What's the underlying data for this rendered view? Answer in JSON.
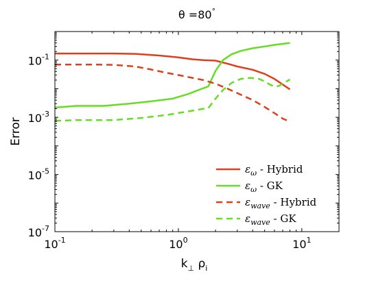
{
  "chart_data": {
    "type": "line",
    "title": {
      "base": "θ =80",
      "sup": "°"
    },
    "xlabel": {
      "k": "k",
      "k_sub": "⊥",
      "rho": " ρ",
      "rho_sub": "i"
    },
    "ylabel": "Error",
    "xscale": "log",
    "yscale": "log",
    "xlim": [
      0.1,
      20
    ],
    "ylim": [
      1e-07,
      1.0
    ],
    "x_ticks": [
      {
        "value": 0.1,
        "base": "10",
        "exp": "-1"
      },
      {
        "value": 1,
        "base": "10",
        "exp": "0"
      },
      {
        "value": 10,
        "base": "10",
        "exp": "1"
      }
    ],
    "y_ticks": [
      {
        "value": 1e-07,
        "base": "10",
        "exp": "-7"
      },
      {
        "value": 1e-05,
        "base": "10",
        "exp": "-5"
      },
      {
        "value": 0.001,
        "base": "10",
        "exp": "-3"
      },
      {
        "value": 0.1,
        "base": "10",
        "exp": "-1"
      }
    ],
    "legend_position": "bottom-right",
    "series": [
      {
        "name": "ε_ω - Hybrid",
        "legend": {
          "sym": "ε",
          "sub": "ω",
          "rest": " - Hybrid"
        },
        "color": "#e03d1a",
        "dash": "solid",
        "points": [
          [
            0.1,
            0.17
          ],
          [
            0.2,
            0.17
          ],
          [
            0.3,
            0.17
          ],
          [
            0.45,
            0.165
          ],
          [
            0.7,
            0.145
          ],
          [
            1.0,
            0.125
          ],
          [
            1.3,
            0.107
          ],
          [
            1.6,
            0.1
          ],
          [
            2.0,
            0.096
          ],
          [
            2.5,
            0.075
          ],
          [
            3.0,
            0.06
          ],
          [
            4.0,
            0.046
          ],
          [
            5.0,
            0.033
          ],
          [
            6.0,
            0.022
          ],
          [
            7.0,
            0.014
          ],
          [
            8.0,
            0.0095
          ]
        ]
      },
      {
        "name": "ε_ω - GK",
        "legend": {
          "sym": "ε",
          "sub": "ω",
          "rest": " - GK"
        },
        "color": "#66dd22",
        "dash": "solid",
        "points": [
          [
            0.1,
            0.0022
          ],
          [
            0.15,
            0.0025
          ],
          [
            0.25,
            0.0025
          ],
          [
            0.4,
            0.003
          ],
          [
            0.6,
            0.0036
          ],
          [
            0.9,
            0.0045
          ],
          [
            1.2,
            0.0065
          ],
          [
            1.5,
            0.0095
          ],
          [
            1.75,
            0.012
          ],
          [
            2.0,
            0.042
          ],
          [
            2.3,
            0.1
          ],
          [
            2.7,
            0.16
          ],
          [
            3.2,
            0.21
          ],
          [
            4.0,
            0.26
          ],
          [
            5.0,
            0.3
          ],
          [
            6.0,
            0.34
          ],
          [
            7.0,
            0.37
          ],
          [
            8.0,
            0.4
          ]
        ]
      },
      {
        "name": "ε_wave - Hybrid",
        "legend": {
          "sym": "ε",
          "sub": "wave",
          "rest": " - Hybrid"
        },
        "color": "#e03d1a",
        "dash": "dashed",
        "points": [
          [
            0.1,
            0.07
          ],
          [
            0.2,
            0.07
          ],
          [
            0.3,
            0.068
          ],
          [
            0.45,
            0.06
          ],
          [
            0.6,
            0.047
          ],
          [
            0.8,
            0.036
          ],
          [
            1.0,
            0.03
          ],
          [
            1.3,
            0.024
          ],
          [
            1.6,
            0.02
          ],
          [
            2.0,
            0.015
          ],
          [
            2.5,
            0.01
          ],
          [
            3.0,
            0.007
          ],
          [
            4.0,
            0.004
          ],
          [
            5.0,
            0.0023
          ],
          [
            6.0,
            0.0014
          ],
          [
            7.0,
            0.0009
          ],
          [
            8.0,
            0.0007
          ]
        ]
      },
      {
        "name": "ε_wave - GK",
        "legend": {
          "sym": "ε",
          "sub": "wave",
          "rest": " - GK"
        },
        "color": "#66dd22",
        "dash": "dashed",
        "points": [
          [
            0.1,
            0.00075
          ],
          [
            0.15,
            0.0008
          ],
          [
            0.3,
            0.0008
          ],
          [
            0.5,
            0.00095
          ],
          [
            0.8,
            0.0012
          ],
          [
            1.2,
            0.0016
          ],
          [
            1.6,
            0.002
          ],
          [
            1.75,
            0.0021
          ],
          [
            2.0,
            0.0045
          ],
          [
            2.3,
            0.009
          ],
          [
            2.7,
            0.016
          ],
          [
            3.2,
            0.022
          ],
          [
            3.8,
            0.024
          ],
          [
            4.5,
            0.022
          ],
          [
            5.0,
            0.018
          ],
          [
            5.5,
            0.014
          ],
          [
            6.0,
            0.012
          ],
          [
            6.5,
            0.0125
          ],
          [
            7.0,
            0.015
          ],
          [
            8.0,
            0.021
          ]
        ]
      }
    ]
  }
}
